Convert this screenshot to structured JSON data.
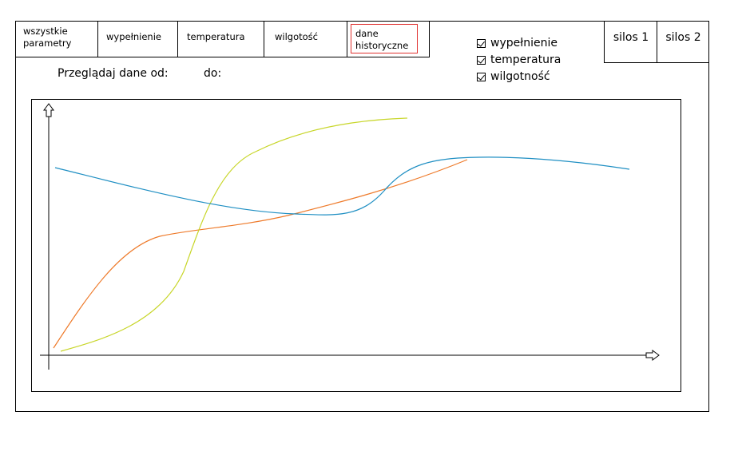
{
  "tabs": [
    {
      "label_line1": "wszystkie",
      "label_line2": "parametry"
    },
    {
      "label": "wypełnienie"
    },
    {
      "label": "temperatura"
    },
    {
      "label": "wilgotość"
    },
    {
      "label_line1": "dane",
      "label_line2": "historyczne",
      "active": true
    }
  ],
  "checkboxes": [
    {
      "label": "wypełnienie",
      "checked": true
    },
    {
      "label": "temperatura",
      "checked": true
    },
    {
      "label": "wilgotność",
      "checked": true
    }
  ],
  "silos": [
    {
      "label": "silos 1"
    },
    {
      "label": "silos 2"
    }
  ],
  "range": {
    "from_label": "Przeglądaj dane od:",
    "to_label": "do:"
  },
  "colors": {
    "blue": "#1f8fc3",
    "orange": "#ee7a2a",
    "yellow_green": "#c8d62a",
    "active_tab_border": "#e0312f"
  },
  "chart_data": {
    "type": "line",
    "title": "",
    "xlabel": "",
    "ylabel": "",
    "grid": false,
    "series": [
      {
        "color": "blue"
      },
      {
        "color": "orange"
      },
      {
        "color": "yellow_green"
      }
    ]
  }
}
